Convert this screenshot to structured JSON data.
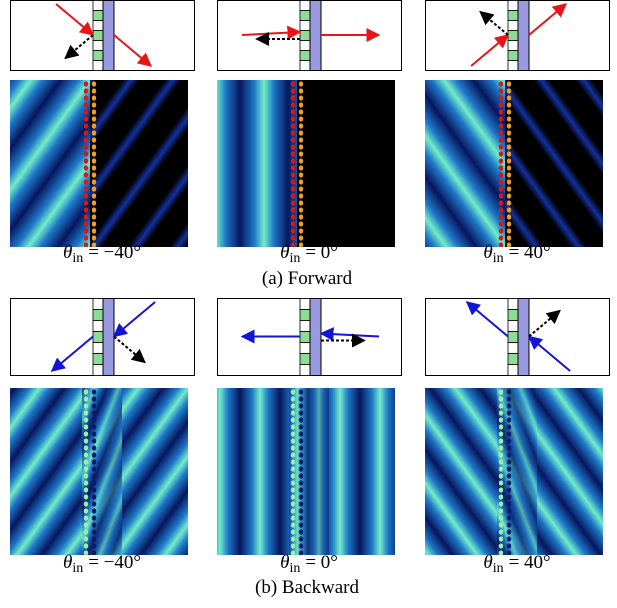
{
  "figure": {
    "panels": [
      {
        "caption": "(a) Forward",
        "views": [
          {
            "symbol": "θ",
            "subscript": "in",
            "equation": "= −40°"
          },
          {
            "symbol": "θ",
            "subscript": "in",
            "equation": "= 0°"
          },
          {
            "symbol": "θ",
            "subscript": "in",
            "equation": "= 40°"
          }
        ]
      },
      {
        "caption": "(b) Backward",
        "views": [
          {
            "symbol": "θ",
            "subscript": "in",
            "equation": "= −40°"
          },
          {
            "symbol": "θ",
            "subscript": "in",
            "equation": "= 0°"
          },
          {
            "symbol": "θ",
            "subscript": "in",
            "equation": "= 40°"
          }
        ]
      }
    ]
  }
}
